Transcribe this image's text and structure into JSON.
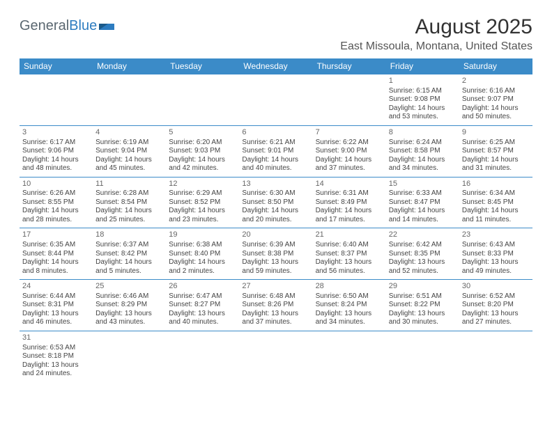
{
  "brand": {
    "part1": "General",
    "part2": "Blue"
  },
  "title": "August 2025",
  "location": "East Missoula, Montana, United States",
  "colors": {
    "header_bg": "#3b8bc8",
    "header_text": "#ffffff",
    "border": "#3b8bc8",
    "brand_gray": "#5a6770",
    "brand_blue": "#2d7cc0",
    "text": "#444444",
    "daynum": "#666666",
    "background": "#ffffff"
  },
  "weekdays": [
    "Sunday",
    "Monday",
    "Tuesday",
    "Wednesday",
    "Thursday",
    "Friday",
    "Saturday"
  ],
  "weeks": [
    [
      {
        "day": "",
        "sunrise": "",
        "sunset": "",
        "daylight": ""
      },
      {
        "day": "",
        "sunrise": "",
        "sunset": "",
        "daylight": ""
      },
      {
        "day": "",
        "sunrise": "",
        "sunset": "",
        "daylight": ""
      },
      {
        "day": "",
        "sunrise": "",
        "sunset": "",
        "daylight": ""
      },
      {
        "day": "",
        "sunrise": "",
        "sunset": "",
        "daylight": ""
      },
      {
        "day": "1",
        "sunrise": "Sunrise: 6:15 AM",
        "sunset": "Sunset: 9:08 PM",
        "daylight": "Daylight: 14 hours and 53 minutes."
      },
      {
        "day": "2",
        "sunrise": "Sunrise: 6:16 AM",
        "sunset": "Sunset: 9:07 PM",
        "daylight": "Daylight: 14 hours and 50 minutes."
      }
    ],
    [
      {
        "day": "3",
        "sunrise": "Sunrise: 6:17 AM",
        "sunset": "Sunset: 9:06 PM",
        "daylight": "Daylight: 14 hours and 48 minutes."
      },
      {
        "day": "4",
        "sunrise": "Sunrise: 6:19 AM",
        "sunset": "Sunset: 9:04 PM",
        "daylight": "Daylight: 14 hours and 45 minutes."
      },
      {
        "day": "5",
        "sunrise": "Sunrise: 6:20 AM",
        "sunset": "Sunset: 9:03 PM",
        "daylight": "Daylight: 14 hours and 42 minutes."
      },
      {
        "day": "6",
        "sunrise": "Sunrise: 6:21 AM",
        "sunset": "Sunset: 9:01 PM",
        "daylight": "Daylight: 14 hours and 40 minutes."
      },
      {
        "day": "7",
        "sunrise": "Sunrise: 6:22 AM",
        "sunset": "Sunset: 9:00 PM",
        "daylight": "Daylight: 14 hours and 37 minutes."
      },
      {
        "day": "8",
        "sunrise": "Sunrise: 6:24 AM",
        "sunset": "Sunset: 8:58 PM",
        "daylight": "Daylight: 14 hours and 34 minutes."
      },
      {
        "day": "9",
        "sunrise": "Sunrise: 6:25 AM",
        "sunset": "Sunset: 8:57 PM",
        "daylight": "Daylight: 14 hours and 31 minutes."
      }
    ],
    [
      {
        "day": "10",
        "sunrise": "Sunrise: 6:26 AM",
        "sunset": "Sunset: 8:55 PM",
        "daylight": "Daylight: 14 hours and 28 minutes."
      },
      {
        "day": "11",
        "sunrise": "Sunrise: 6:28 AM",
        "sunset": "Sunset: 8:54 PM",
        "daylight": "Daylight: 14 hours and 25 minutes."
      },
      {
        "day": "12",
        "sunrise": "Sunrise: 6:29 AM",
        "sunset": "Sunset: 8:52 PM",
        "daylight": "Daylight: 14 hours and 23 minutes."
      },
      {
        "day": "13",
        "sunrise": "Sunrise: 6:30 AM",
        "sunset": "Sunset: 8:50 PM",
        "daylight": "Daylight: 14 hours and 20 minutes."
      },
      {
        "day": "14",
        "sunrise": "Sunrise: 6:31 AM",
        "sunset": "Sunset: 8:49 PM",
        "daylight": "Daylight: 14 hours and 17 minutes."
      },
      {
        "day": "15",
        "sunrise": "Sunrise: 6:33 AM",
        "sunset": "Sunset: 8:47 PM",
        "daylight": "Daylight: 14 hours and 14 minutes."
      },
      {
        "day": "16",
        "sunrise": "Sunrise: 6:34 AM",
        "sunset": "Sunset: 8:45 PM",
        "daylight": "Daylight: 14 hours and 11 minutes."
      }
    ],
    [
      {
        "day": "17",
        "sunrise": "Sunrise: 6:35 AM",
        "sunset": "Sunset: 8:44 PM",
        "daylight": "Daylight: 14 hours and 8 minutes."
      },
      {
        "day": "18",
        "sunrise": "Sunrise: 6:37 AM",
        "sunset": "Sunset: 8:42 PM",
        "daylight": "Daylight: 14 hours and 5 minutes."
      },
      {
        "day": "19",
        "sunrise": "Sunrise: 6:38 AM",
        "sunset": "Sunset: 8:40 PM",
        "daylight": "Daylight: 14 hours and 2 minutes."
      },
      {
        "day": "20",
        "sunrise": "Sunrise: 6:39 AM",
        "sunset": "Sunset: 8:38 PM",
        "daylight": "Daylight: 13 hours and 59 minutes."
      },
      {
        "day": "21",
        "sunrise": "Sunrise: 6:40 AM",
        "sunset": "Sunset: 8:37 PM",
        "daylight": "Daylight: 13 hours and 56 minutes."
      },
      {
        "day": "22",
        "sunrise": "Sunrise: 6:42 AM",
        "sunset": "Sunset: 8:35 PM",
        "daylight": "Daylight: 13 hours and 52 minutes."
      },
      {
        "day": "23",
        "sunrise": "Sunrise: 6:43 AM",
        "sunset": "Sunset: 8:33 PM",
        "daylight": "Daylight: 13 hours and 49 minutes."
      }
    ],
    [
      {
        "day": "24",
        "sunrise": "Sunrise: 6:44 AM",
        "sunset": "Sunset: 8:31 PM",
        "daylight": "Daylight: 13 hours and 46 minutes."
      },
      {
        "day": "25",
        "sunrise": "Sunrise: 6:46 AM",
        "sunset": "Sunset: 8:29 PM",
        "daylight": "Daylight: 13 hours and 43 minutes."
      },
      {
        "day": "26",
        "sunrise": "Sunrise: 6:47 AM",
        "sunset": "Sunset: 8:27 PM",
        "daylight": "Daylight: 13 hours and 40 minutes."
      },
      {
        "day": "27",
        "sunrise": "Sunrise: 6:48 AM",
        "sunset": "Sunset: 8:26 PM",
        "daylight": "Daylight: 13 hours and 37 minutes."
      },
      {
        "day": "28",
        "sunrise": "Sunrise: 6:50 AM",
        "sunset": "Sunset: 8:24 PM",
        "daylight": "Daylight: 13 hours and 34 minutes."
      },
      {
        "day": "29",
        "sunrise": "Sunrise: 6:51 AM",
        "sunset": "Sunset: 8:22 PM",
        "daylight": "Daylight: 13 hours and 30 minutes."
      },
      {
        "day": "30",
        "sunrise": "Sunrise: 6:52 AM",
        "sunset": "Sunset: 8:20 PM",
        "daylight": "Daylight: 13 hours and 27 minutes."
      }
    ],
    [
      {
        "day": "31",
        "sunrise": "Sunrise: 6:53 AM",
        "sunset": "Sunset: 8:18 PM",
        "daylight": "Daylight: 13 hours and 24 minutes."
      },
      {
        "day": "",
        "sunrise": "",
        "sunset": "",
        "daylight": ""
      },
      {
        "day": "",
        "sunrise": "",
        "sunset": "",
        "daylight": ""
      },
      {
        "day": "",
        "sunrise": "",
        "sunset": "",
        "daylight": ""
      },
      {
        "day": "",
        "sunrise": "",
        "sunset": "",
        "daylight": ""
      },
      {
        "day": "",
        "sunrise": "",
        "sunset": "",
        "daylight": ""
      },
      {
        "day": "",
        "sunrise": "",
        "sunset": "",
        "daylight": ""
      }
    ]
  ]
}
